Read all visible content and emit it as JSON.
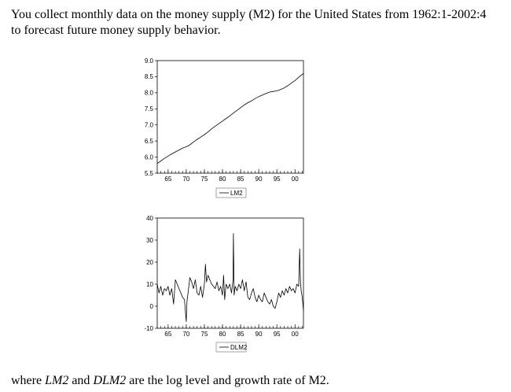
{
  "intro_text": "You collect monthly data on the money supply (M2) for the United States from 1962:1-2002:4 to forecast future money supply behavior.",
  "outro": {
    "prefix": "where ",
    "var1": "LM2",
    "middle": " and ",
    "var2": "DLM2",
    "suffix": " are the log level and growth rate of M2."
  },
  "colors": {
    "line": "#000000",
    "axis": "#000000",
    "legend_border": "#808080"
  },
  "chart_data": [
    {
      "type": "line",
      "title": "",
      "xlabel": "",
      "ylabel": "",
      "xlim": [
        1962,
        2002.33
      ],
      "ylim": [
        5.5,
        9.0
      ],
      "x_ticks": [
        65,
        70,
        75,
        80,
        85,
        90,
        95,
        "00"
      ],
      "x_tick_years": [
        1965,
        1970,
        1975,
        1980,
        1985,
        1990,
        1995,
        2000
      ],
      "y_ticks": [
        "5.5",
        "6.0",
        "6.5",
        "7.0",
        "7.5",
        "8.0",
        "8.5",
        "9.0"
      ],
      "grid": false,
      "legend_position": "bottom-center",
      "series": [
        {
          "name": "LM2",
          "x": [
            1962,
            1963,
            1964,
            1965,
            1966,
            1967,
            1968,
            1969,
            1970,
            1971,
            1972,
            1973,
            1974,
            1975,
            1976,
            1977,
            1978,
            1979,
            1980,
            1981,
            1982,
            1983,
            1984,
            1985,
            1986,
            1987,
            1988,
            1989,
            1990,
            1991,
            1992,
            1993,
            1994,
            1995,
            1996,
            1997,
            1998,
            1999,
            2000,
            2001,
            2002.33
          ],
          "values": [
            5.8,
            5.88,
            5.96,
            6.03,
            6.1,
            6.16,
            6.22,
            6.28,
            6.32,
            6.38,
            6.47,
            6.55,
            6.62,
            6.7,
            6.78,
            6.88,
            6.96,
            7.04,
            7.12,
            7.2,
            7.28,
            7.37,
            7.45,
            7.54,
            7.62,
            7.69,
            7.75,
            7.82,
            7.88,
            7.93,
            7.98,
            8.02,
            8.04,
            8.06,
            8.1,
            8.15,
            8.22,
            8.3,
            8.38,
            8.48,
            8.6
          ]
        }
      ]
    },
    {
      "type": "line",
      "title": "",
      "xlabel": "",
      "ylabel": "",
      "xlim": [
        1962,
        2002.33
      ],
      "ylim": [
        -10,
        40
      ],
      "x_ticks": [
        65,
        70,
        75,
        80,
        85,
        90,
        95,
        "00"
      ],
      "x_tick_years": [
        1965,
        1970,
        1975,
        1980,
        1985,
        1990,
        1995,
        2000
      ],
      "y_ticks": [
        "-10",
        "0",
        "10",
        "20",
        "30",
        "40"
      ],
      "grid": false,
      "legend_position": "bottom-center",
      "series": [
        {
          "name": "DLM2",
          "x": [
            1962.0,
            1962.5,
            1963.0,
            1963.5,
            1964.0,
            1964.5,
            1965.0,
            1965.5,
            1966.0,
            1966.5,
            1967.0,
            1967.5,
            1968.0,
            1968.5,
            1969.0,
            1969.5,
            1970.0,
            1970.2,
            1970.5,
            1971.0,
            1971.5,
            1972.0,
            1972.5,
            1973.0,
            1973.5,
            1974.0,
            1974.5,
            1975.0,
            1975.3,
            1975.6,
            1976.0,
            1976.5,
            1977.0,
            1977.5,
            1978.0,
            1978.5,
            1979.0,
            1979.5,
            1980.0,
            1980.3,
            1980.6,
            1981.0,
            1981.5,
            1982.0,
            1982.5,
            1982.9,
            1983.0,
            1983.2,
            1983.5,
            1984.0,
            1984.5,
            1985.0,
            1985.5,
            1986.0,
            1986.5,
            1987.0,
            1987.5,
            1988.0,
            1988.5,
            1989.0,
            1989.5,
            1990.0,
            1990.5,
            1991.0,
            1991.5,
            1992.0,
            1992.5,
            1993.0,
            1993.5,
            1994.0,
            1994.5,
            1995.0,
            1995.5,
            1996.0,
            1996.5,
            1997.0,
            1997.5,
            1998.0,
            1998.5,
            1999.0,
            1999.5,
            2000.0,
            2000.5,
            2001.0,
            2001.3,
            2001.5,
            2001.7,
            2002.0,
            2002.33
          ],
          "values": [
            10,
            6,
            9,
            5,
            8,
            7,
            9,
            5,
            8,
            1,
            12,
            10,
            8,
            6,
            4,
            3,
            -7,
            2,
            6,
            13,
            11,
            8,
            12,
            6,
            5,
            9,
            4,
            10,
            19,
            11,
            14,
            12,
            10,
            9,
            8,
            11,
            7,
            9,
            5,
            14,
            3,
            10,
            8,
            10,
            6,
            12,
            33,
            5,
            9,
            7,
            10,
            8,
            12,
            7,
            11,
            4,
            3,
            6,
            8,
            4,
            2,
            5,
            3,
            2,
            6,
            4,
            2,
            1,
            3,
            0,
            -1,
            2,
            6,
            4,
            7,
            5,
            8,
            6,
            9,
            7,
            8,
            6,
            10,
            9,
            26,
            11,
            7,
            4,
            -2
          ]
        }
      ]
    }
  ]
}
